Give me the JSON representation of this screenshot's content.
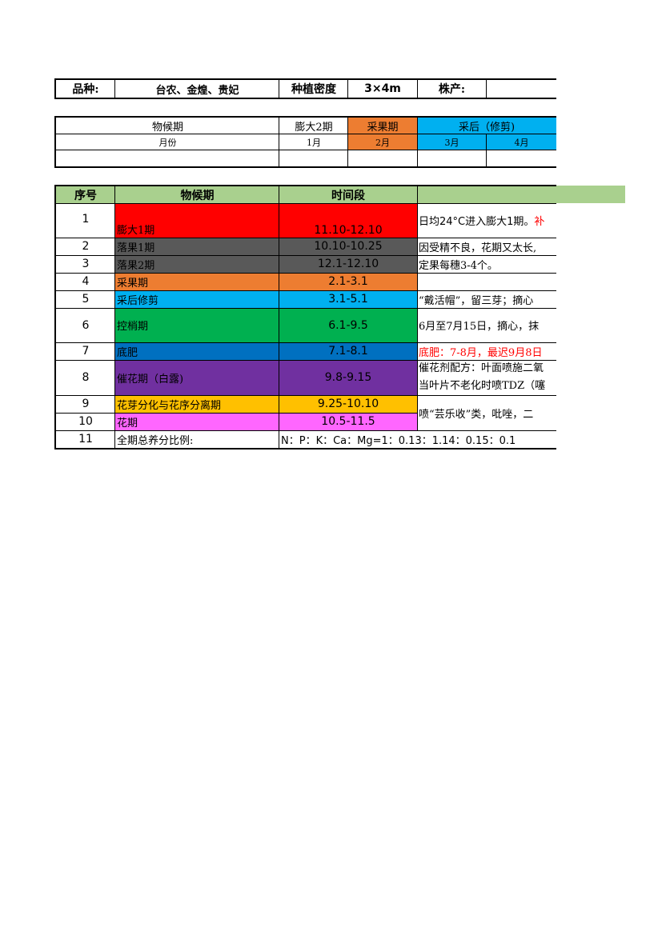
{
  "info_row": {
    "variety_label": "品种:",
    "variety_value": "台农、金煌、贵妃",
    "density_label": "种植密度",
    "density_value": "3×4m",
    "yield_label": "株产:",
    "yield_value": ""
  },
  "calendar": {
    "phenology_header": "物候期",
    "phases": [
      "膨大2期",
      "采果期",
      "采后（修剪)"
    ],
    "month_header": "月份",
    "months": [
      "1月",
      "2月",
      "3月",
      "4月"
    ]
  },
  "table": {
    "headers": [
      "序号",
      "物候期",
      "时间段",
      ""
    ],
    "rows": [
      {
        "no": "1",
        "stage": "膨大1期",
        "period": "11.10-12.10",
        "note": "日均24°C进入膨大1期。",
        "note_extra": "补",
        "color": "#ff0000"
      },
      {
        "no": "2",
        "stage": "落果1期",
        "period": "10.10-10.25",
        "note": "因受精不良，花期又太长,",
        "color": "#595959"
      },
      {
        "no": "3",
        "stage": "落果2期",
        "period": "12.1-12.10",
        "note": "定果每穗3-4个。",
        "color": "#595959"
      },
      {
        "no": "4",
        "stage": "采果期",
        "period": "2.1-3.1",
        "note": "",
        "color": "#ed7d31"
      },
      {
        "no": "5",
        "stage": "采后修剪",
        "period": "3.1-5.1",
        "note": "“戴活帽”，留三芽；摘心",
        "color": "#00b0f0"
      },
      {
        "no": "6",
        "stage": "控梢期",
        "period": "6.1-9.5",
        "note": "6月至7月15日，摘心，抹",
        "color": "#00b050"
      },
      {
        "no": "7",
        "stage": "底肥",
        "period": "7.1-8.1",
        "note": "底肥：7-8月，最迟9月8日",
        "color": "#0070c0"
      },
      {
        "no": "8",
        "stage": "催花期（白露)",
        "period": "9.8-9.15",
        "note": "催花剂配方：叶面喷施二氧",
        "note2": "当叶片不老化时喷TDZ（噻",
        "color": "#7030a0"
      },
      {
        "no": "9",
        "stage": "花芽分化与花序分离期",
        "period": "9.25-10.10",
        "note": "喷“芸乐收”类，吡唑，二",
        "color": "#ffc000"
      },
      {
        "no": "10",
        "stage": "花期",
        "period": "10.5-11.5",
        "note": "",
        "color": "#ff66ff"
      },
      {
        "no": "11",
        "stage": "全期总养分比例:",
        "period": "N：P：K：Ca：Mg=1：0.13：1.14：0.15：0.1",
        "note": "",
        "color": "#ffffff"
      }
    ]
  },
  "colors": {
    "header_green": "#a9d08e",
    "phase_orange": "#ed7d31",
    "phase_blue": "#00b0f0"
  }
}
